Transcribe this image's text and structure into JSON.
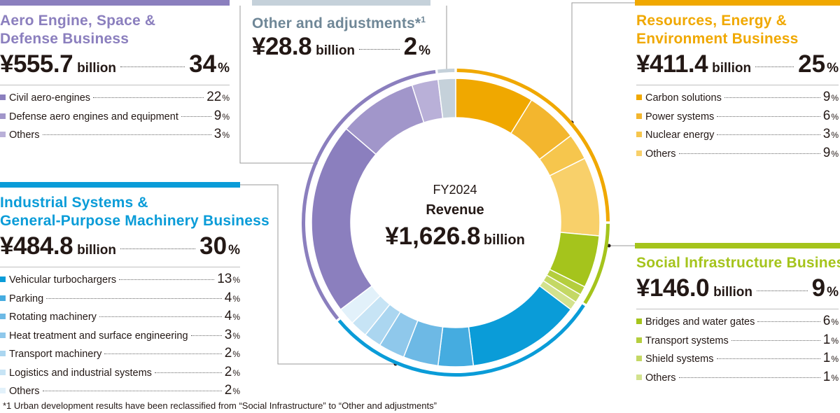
{
  "chart_data": {
    "type": "donut",
    "center": {
      "fiscal_year": "FY2024",
      "label": "Revenue",
      "amount": "¥1,626.8",
      "unit": "billion"
    },
    "segments": [
      {
        "name": "Carbon solutions",
        "group": "Resources, Energy & Environment Business",
        "value": 9,
        "color": "#F0A800"
      },
      {
        "name": "Power systems",
        "group": "Resources, Energy & Environment Business",
        "value": 6,
        "color": "#F3B62E"
      },
      {
        "name": "Nuclear energy",
        "group": "Resources, Energy & Environment Business",
        "value": 3,
        "color": "#F6C64D"
      },
      {
        "name": "Others",
        "group": "Resources, Energy & Environment Business",
        "value": 9,
        "color": "#F8D06A"
      },
      {
        "name": "Bridges and water gates",
        "group": "Social Infrastructure Business",
        "value": 6,
        "color": "#A5C41C"
      },
      {
        "name": "Transport systems",
        "group": "Social Infrastructure Business",
        "value": 1,
        "color": "#B5CE3E"
      },
      {
        "name": "Shield systems",
        "group": "Social Infrastructure Business",
        "value": 1,
        "color": "#C4D864"
      },
      {
        "name": "Others",
        "group": "Social Infrastructure Business",
        "value": 1,
        "color": "#D3E28E"
      },
      {
        "name": "Vehicular turbochargers",
        "group": "Industrial Systems & General-Purpose Machinery Business",
        "value": 13,
        "color": "#0A9CD8"
      },
      {
        "name": "Parking",
        "group": "Industrial Systems & General-Purpose Machinery Business",
        "value": 4,
        "color": "#45ACE0"
      },
      {
        "name": "Rotating machinery",
        "group": "Industrial Systems & General-Purpose Machinery Business",
        "value": 4,
        "color": "#6DB9E5"
      },
      {
        "name": "Heat treatment and surface engineering",
        "group": "Industrial Systems & General-Purpose Machinery Business",
        "value": 3,
        "color": "#8FC8EB"
      },
      {
        "name": "Transport machinery",
        "group": "Industrial Systems & General-Purpose Machinery Business",
        "value": 2,
        "color": "#ABD6F0"
      },
      {
        "name": "Logistics and industrial systems",
        "group": "Industrial Systems & General-Purpose Machinery Business",
        "value": 2,
        "color": "#C7E4F5"
      },
      {
        "name": "Others",
        "group": "Industrial Systems & General-Purpose Machinery Business",
        "value": 2,
        "color": "#E2F1FA"
      },
      {
        "name": "Civil aero-engines",
        "group": "Aero Engine, Space & Defense Business",
        "value": 22,
        "color": "#8B7FBE"
      },
      {
        "name": "Defense aero engines and equipment",
        "group": "Aero Engine, Space & Defense Business",
        "value": 9,
        "color": "#A196CA"
      },
      {
        "name": "Others",
        "group": "Aero Engine, Space & Defense Business",
        "value": 3,
        "color": "#B9B0D8"
      },
      {
        "name": "Other and adjustments",
        "group": "Other and adjustments",
        "value": 2,
        "color": "#C5D1DA"
      }
    ],
    "outer_ring": [
      {
        "group": "Resources, Energy & Environment Business",
        "value": 25,
        "color": "#F0A800"
      },
      {
        "group": "Social Infrastructure Business",
        "value": 9,
        "color": "#A5C41C"
      },
      {
        "group": "Industrial Systems & General-Purpose Machinery Business",
        "value": 30,
        "color": "#0A9CD8"
      },
      {
        "group": "Aero Engine, Space & Defense Business",
        "value": 34,
        "color": "#8B7FBE"
      },
      {
        "group": "Other and adjustments",
        "value": 2,
        "color": "#C5D1DA"
      }
    ]
  },
  "panels": {
    "aero": {
      "title_line1": "Aero Engine, Space &",
      "title_line2": "Defense Business",
      "amount": "¥555.7",
      "unit": "billion",
      "pct": "34",
      "pct_sym": "%",
      "color": "#8B7FBE",
      "items": [
        {
          "label": "Civil aero-engines",
          "value": "22",
          "sym": "%",
          "color": "#8B7FBE"
        },
        {
          "label": "Defense aero engines and equipment",
          "value": "9",
          "sym": "%",
          "color": "#A196CA"
        },
        {
          "label": "Others",
          "value": "3",
          "sym": "%",
          "color": "#B9B0D8"
        }
      ]
    },
    "other": {
      "title": "Other and adjustments*",
      "title_sup": "1",
      "amount": "¥28.8",
      "unit": "billion",
      "pct": "2",
      "pct_sym": "%",
      "color": "#C5D1DA"
    },
    "resources": {
      "title_line1": "Resources, Energy &",
      "title_line2": "Environment Business",
      "amount": "¥411.4",
      "unit": "billion",
      "pct": "25",
      "pct_sym": "%",
      "color": "#F0A800",
      "items": [
        {
          "label": "Carbon solutions",
          "value": "9",
          "sym": "%",
          "color": "#F0A800"
        },
        {
          "label": "Power systems",
          "value": "6",
          "sym": "%",
          "color": "#F3B62E"
        },
        {
          "label": "Nuclear energy",
          "value": "3",
          "sym": "%",
          "color": "#F6C64D"
        },
        {
          "label": "Others",
          "value": "9",
          "sym": "%",
          "color": "#F8D06A"
        }
      ]
    },
    "industrial": {
      "title_line1": "Industrial Systems &",
      "title_line2": "General-Purpose Machinery Business",
      "amount": "¥484.8",
      "unit": "billion",
      "pct": "30",
      "pct_sym": "%",
      "color": "#0A9CD8",
      "items": [
        {
          "label": "Vehicular turbochargers",
          "value": "13",
          "sym": "%",
          "color": "#0A9CD8"
        },
        {
          "label": "Parking",
          "value": "4",
          "sym": "%",
          "color": "#45ACE0"
        },
        {
          "label": "Rotating machinery",
          "value": "4",
          "sym": "%",
          "color": "#6DB9E5"
        },
        {
          "label": "Heat treatment and surface engineering",
          "value": "3",
          "sym": "%",
          "color": "#8FC8EB"
        },
        {
          "label": "Transport machinery",
          "value": "2",
          "sym": "%",
          "color": "#ABD6F0"
        },
        {
          "label": "Logistics and industrial systems",
          "value": "2",
          "sym": "%",
          "color": "#C7E4F5"
        },
        {
          "label": "Others",
          "value": "2",
          "sym": "%",
          "color": "#E2F1FA"
        }
      ]
    },
    "social": {
      "title": "Social Infrastructure Business",
      "amount": "¥146.0",
      "unit": "billion",
      "pct": "9",
      "pct_sym": "%",
      "color": "#A5C41C",
      "items": [
        {
          "label": "Bridges and water gates",
          "value": "6",
          "sym": "%",
          "color": "#A5C41C"
        },
        {
          "label": "Transport systems",
          "value": "1",
          "sym": "%",
          "color": "#B5CE3E"
        },
        {
          "label": "Shield systems",
          "value": "1",
          "sym": "%",
          "color": "#C4D864"
        },
        {
          "label": "Others",
          "value": "1",
          "sym": "%",
          "color": "#D3E28E"
        }
      ]
    }
  },
  "footnote": "*1 Urban development results have been reclassified from “Social Infrastructure” to “Other and adjustments”"
}
